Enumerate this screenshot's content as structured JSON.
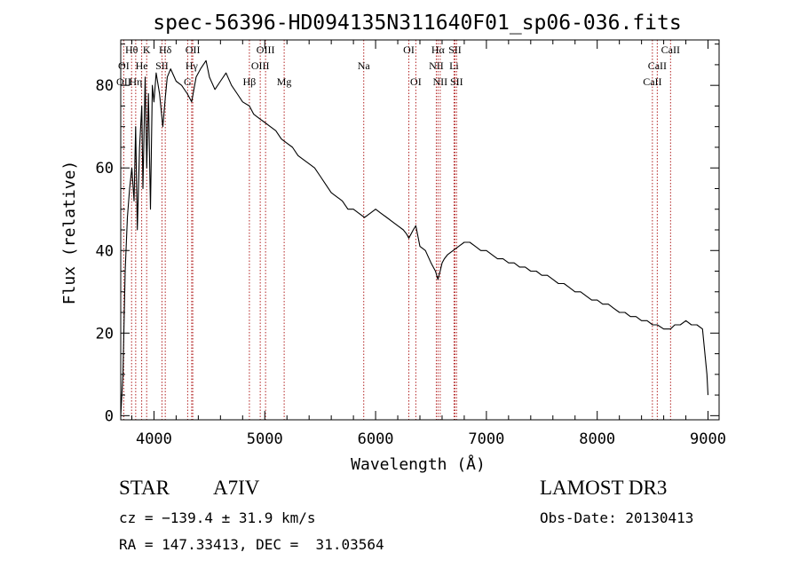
{
  "chart_data": {
    "type": "line",
    "title": "spec-56396-HD094135N311640F01_sp06-036.fits",
    "xlabel": "Wavelength (Å)",
    "ylabel": "Flux (relative)",
    "xlim": [
      3700,
      9100
    ],
    "ylim": [
      -1,
      91
    ],
    "xticks": [
      4000,
      5000,
      6000,
      7000,
      8000,
      9000
    ],
    "yticks": [
      0,
      20,
      40,
      60,
      80
    ],
    "series": [
      {
        "name": "flux",
        "x": [
          3700,
          3720,
          3740,
          3760,
          3780,
          3800,
          3820,
          3835,
          3850,
          3870,
          3890,
          3900,
          3920,
          3935,
          3950,
          3968,
          3985,
          4000,
          4020,
          4050,
          4080,
          4102,
          4120,
          4150,
          4200,
          4250,
          4300,
          4340,
          4380,
          4420,
          4470,
          4500,
          4550,
          4600,
          4650,
          4700,
          4750,
          4800,
          4861,
          4900,
          4950,
          5000,
          5050,
          5100,
          5150,
          5200,
          5250,
          5300,
          5350,
          5400,
          5450,
          5500,
          5550,
          5600,
          5650,
          5700,
          5750,
          5800,
          5850,
          5900,
          5950,
          6000,
          6050,
          6100,
          6150,
          6200,
          6250,
          6280,
          6300,
          6320,
          6340,
          6363,
          6400,
          6450,
          6500,
          6540,
          6563,
          6583,
          6600,
          6620,
          6650,
          6700,
          6750,
          6800,
          6850,
          6900,
          6950,
          7000,
          7050,
          7100,
          7150,
          7200,
          7250,
          7300,
          7350,
          7400,
          7450,
          7500,
          7550,
          7600,
          7650,
          7700,
          7750,
          7800,
          7850,
          7900,
          7950,
          8000,
          8050,
          8100,
          8150,
          8200,
          8250,
          8300,
          8350,
          8400,
          8450,
          8500,
          8542,
          8600,
          8662,
          8700,
          8750,
          8800,
          8850,
          8900,
          8950,
          8990,
          9000
        ],
        "y": [
          0,
          10,
          35,
          48,
          55,
          60,
          52,
          70,
          45,
          65,
          75,
          55,
          82,
          60,
          78,
          50,
          80,
          76,
          83,
          78,
          70,
          77,
          82,
          84,
          81,
          80,
          78,
          76,
          82,
          84,
          86,
          82,
          79,
          81,
          83,
          80,
          78,
          76,
          75,
          73,
          72,
          71,
          70,
          69,
          67,
          66,
          65,
          63,
          62,
          61,
          60,
          58,
          56,
          54,
          53,
          52,
          50,
          50,
          49,
          48,
          49,
          50,
          49,
          48,
          47,
          46,
          45,
          44,
          43,
          44,
          45,
          46,
          41,
          40,
          37,
          35,
          33,
          35,
          37,
          38,
          39,
          40,
          41,
          42,
          42,
          41,
          40,
          40,
          39,
          38,
          38,
          37,
          37,
          36,
          36,
          35,
          35,
          34,
          34,
          33,
          32,
          32,
          31,
          30,
          30,
          29,
          28,
          28,
          27,
          27,
          26,
          25,
          25,
          24,
          24,
          23,
          23,
          22,
          22,
          21,
          21,
          22,
          22,
          23,
          22,
          22,
          21,
          10,
          5
        ]
      }
    ],
    "lines": [
      {
        "label": "Hθ",
        "wave": 3798,
        "row": 0
      },
      {
        "label": "K",
        "wave": 3934,
        "row": 0
      },
      {
        "label": "Hδ",
        "wave": 4102,
        "row": 0
      },
      {
        "label": "OII",
        "wave": 4350,
        "row": 0
      },
      {
        "label": "OIII",
        "wave": 5007,
        "row": 0
      },
      {
        "label": "OI",
        "wave": 6300,
        "row": 0
      },
      {
        "label": "Hα",
        "wave": 6563,
        "row": 0
      },
      {
        "label": "SII",
        "wave": 6716,
        "row": 0
      },
      {
        "label": "CaII",
        "wave": 8662,
        "row": 0
      },
      {
        "label": "OI",
        "wave": 3727,
        "row": 1
      },
      {
        "label": "He",
        "wave": 3889,
        "row": 1
      },
      {
        "label": "SII",
        "wave": 4072,
        "row": 1
      },
      {
        "label": "Hγ",
        "wave": 4340,
        "row": 1
      },
      {
        "label": "OIII",
        "wave": 4959,
        "row": 1
      },
      {
        "label": "Na",
        "wave": 5893,
        "row": 1
      },
      {
        "label": "NII",
        "wave": 6548,
        "row": 1
      },
      {
        "label": "Li",
        "wave": 6708,
        "row": 1
      },
      {
        "label": "CaII",
        "wave": 8542,
        "row": 1
      },
      {
        "label": "OII",
        "wave": 3727,
        "row": 2
      },
      {
        "label": "Hη",
        "wave": 3835,
        "row": 2
      },
      {
        "label": "G",
        "wave": 4304,
        "row": 2
      },
      {
        "label": "Hβ",
        "wave": 4861,
        "row": 2
      },
      {
        "label": "Mg",
        "wave": 5175,
        "row": 2
      },
      {
        "label": "OI",
        "wave": 6363,
        "row": 2
      },
      {
        "label": "NII",
        "wave": 6583,
        "row": 2
      },
      {
        "label": "SII",
        "wave": 6731,
        "row": 2
      },
      {
        "label": "CaII",
        "wave": 8498,
        "row": 2
      }
    ]
  },
  "info": {
    "class_label": "STAR",
    "subclass": "A7IV",
    "survey": "LAMOST DR3",
    "cz": "cz = −139.4 ± 31.9 km/s",
    "obs_date": "Obs-Date: 20130413",
    "coords": "RA = 147.33413, DEC =  31.03564"
  },
  "colors": {
    "line_marker": "#b22222",
    "spectrum": "#000000"
  }
}
